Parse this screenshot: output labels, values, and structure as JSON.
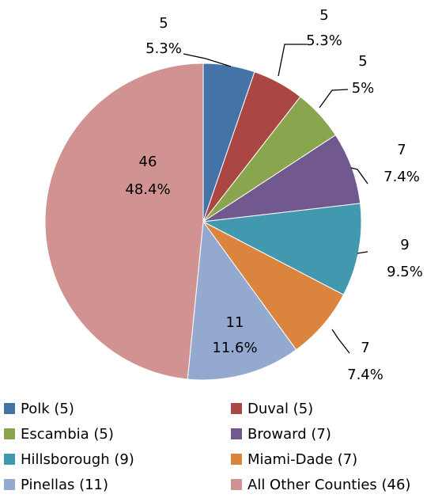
{
  "chart_data": {
    "type": "pie",
    "categories": [
      "Polk (5)",
      "Duval (5)",
      "Escambia (5)",
      "Broward (7)",
      "Hillsborough (9)",
      "Miami-Dade (7)",
      "Pinellas (11)",
      "All Other Counties (46)"
    ],
    "values": [
      5,
      5,
      5,
      7,
      9,
      7,
      11,
      46
    ],
    "percent_labels": [
      "5.3%",
      "5.3%",
      "5%",
      "7.4%",
      "9.5%",
      "7.4%",
      "11.6%",
      "48.4%"
    ],
    "colors": [
      "#4572a7",
      "#aa4643",
      "#89a54e",
      "#71588f",
      "#4198af",
      "#db843d",
      "#93a9cf",
      "#d19392"
    ],
    "legend": "bottom"
  }
}
